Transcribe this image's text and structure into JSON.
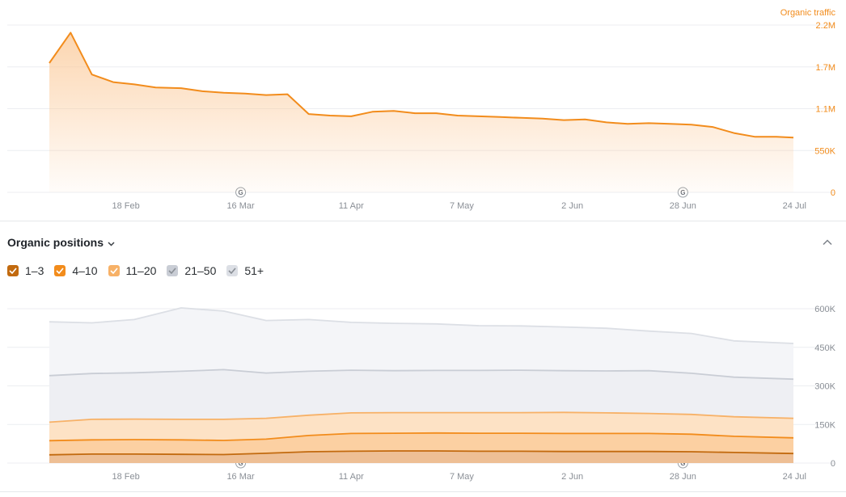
{
  "chart_data": [
    {
      "type": "area",
      "title": "",
      "xlabel": "",
      "ylabel": "Organic traffic",
      "x_tick_labels": [
        "18 Feb",
        "16 Mar",
        "11 Apr",
        "7 May",
        "2 Jun",
        "28 Jun",
        "24 Jul"
      ],
      "y_tick_labels": [
        "2.2M",
        "1.7M",
        "1.1M",
        "550K",
        "0"
      ],
      "ylim": [
        0,
        2200000
      ],
      "grid": true,
      "axis_side": "right",
      "event_markers": [
        {
          "x": "16 Mar",
          "label": "G"
        },
        {
          "x": "28 Jun",
          "label": "G"
        }
      ],
      "series": [
        {
          "name": "Organic traffic",
          "color": "#f28c1c",
          "x": [
            "31 Jan",
            "5 Feb",
            "10 Feb",
            "15 Feb",
            "20 Feb",
            "25 Feb",
            "2 Mar",
            "7 Mar",
            "12 Mar",
            "17 Mar",
            "22 Mar",
            "27 Mar",
            "1 Apr",
            "6 Apr",
            "11 Apr",
            "16 Apr",
            "21 Apr",
            "26 Apr",
            "1 May",
            "6 May",
            "11 May",
            "16 May",
            "21 May",
            "26 May",
            "31 May",
            "5 Jun",
            "10 Jun",
            "15 Jun",
            "20 Jun",
            "25 Jun",
            "30 Jun",
            "5 Jul",
            "10 Jul",
            "15 Jul",
            "20 Jul",
            "24 Jul"
          ],
          "values": [
            1700000,
            2100000,
            1550000,
            1450000,
            1420000,
            1380000,
            1370000,
            1330000,
            1310000,
            1300000,
            1280000,
            1290000,
            1030000,
            1010000,
            1000000,
            1060000,
            1070000,
            1040000,
            1040000,
            1010000,
            1000000,
            990000,
            980000,
            970000,
            950000,
            960000,
            920000,
            900000,
            910000,
            900000,
            890000,
            860000,
            780000,
            730000,
            730000,
            720000
          ]
        }
      ]
    },
    {
      "type": "area",
      "title": "Organic positions",
      "xlabel": "",
      "ylabel": "",
      "x_tick_labels": [
        "18 Feb",
        "16 Mar",
        "11 Apr",
        "7 May",
        "2 Jun",
        "28 Jun",
        "24 Jul"
      ],
      "y_tick_labels": [
        "600K",
        "450K",
        "300K",
        "150K",
        "0"
      ],
      "ylim": [
        0,
        600000
      ],
      "grid": true,
      "stacked": true,
      "axis_side": "right",
      "legend_position": "top-left",
      "event_markers": [
        {
          "x": "16 Mar",
          "label": "G"
        },
        {
          "x": "28 Jun",
          "label": "G"
        }
      ],
      "x": [
        "31 Jan",
        "10 Feb",
        "20 Feb",
        "2 Mar",
        "12 Mar",
        "22 Mar",
        "1 Apr",
        "11 Apr",
        "21 Apr",
        "1 May",
        "11 May",
        "21 May",
        "31 May",
        "10 Jun",
        "20 Jun",
        "30 Jun",
        "10 Jul",
        "24 Jul"
      ],
      "series": [
        {
          "name": "1–3",
          "color": "#c26a0f",
          "values": [
            32000,
            35000,
            35000,
            34000,
            33000,
            38000,
            44000,
            46000,
            47000,
            47000,
            46000,
            46000,
            45000,
            45000,
            45000,
            44000,
            41000,
            37000
          ]
        },
        {
          "name": "4–10",
          "color": "#f28c1c",
          "values": [
            55000,
            55000,
            56000,
            56000,
            55000,
            55000,
            63000,
            69000,
            69000,
            70000,
            70000,
            70000,
            70000,
            70000,
            70000,
            68000,
            63000,
            61000
          ]
        },
        {
          "name": "11–20",
          "color": "#f7b167",
          "values": [
            72000,
            80000,
            80000,
            80000,
            82000,
            81000,
            79000,
            80000,
            80000,
            79000,
            80000,
            80000,
            82000,
            80000,
            78000,
            77000,
            76000,
            76000
          ]
        },
        {
          "name": "21–50",
          "color": "#c9cdd5",
          "values": [
            181000,
            178000,
            180000,
            187000,
            193000,
            176000,
            171000,
            166000,
            163000,
            164000,
            164000,
            165000,
            162000,
            163000,
            166000,
            160000,
            154000,
            152000
          ]
        },
        {
          "name": "51+",
          "color": "#dcdfe5",
          "values": [
            209000,
            197000,
            207000,
            246000,
            228000,
            204000,
            201000,
            186000,
            184000,
            181000,
            174000,
            172000,
            170000,
            166000,
            154000,
            155000,
            141000,
            139000
          ]
        }
      ]
    }
  ],
  "positions_section": {
    "title": "Organic positions",
    "legend": [
      {
        "label": "1–3",
        "color": "#c26a0f",
        "checked": true
      },
      {
        "label": "4–10",
        "color": "#f28c1c",
        "checked": true
      },
      {
        "label": "11–20",
        "color": "#f7b167",
        "checked": true
      },
      {
        "label": "21–50",
        "color": "#c9cdd5",
        "checked": true
      },
      {
        "label": "51+",
        "color": "#dcdfe5",
        "checked": true
      }
    ]
  },
  "icons": {
    "title_dropdown": "chevron-down-icon",
    "collapse": "chevron-up-icon",
    "event": "google-update-icon"
  }
}
